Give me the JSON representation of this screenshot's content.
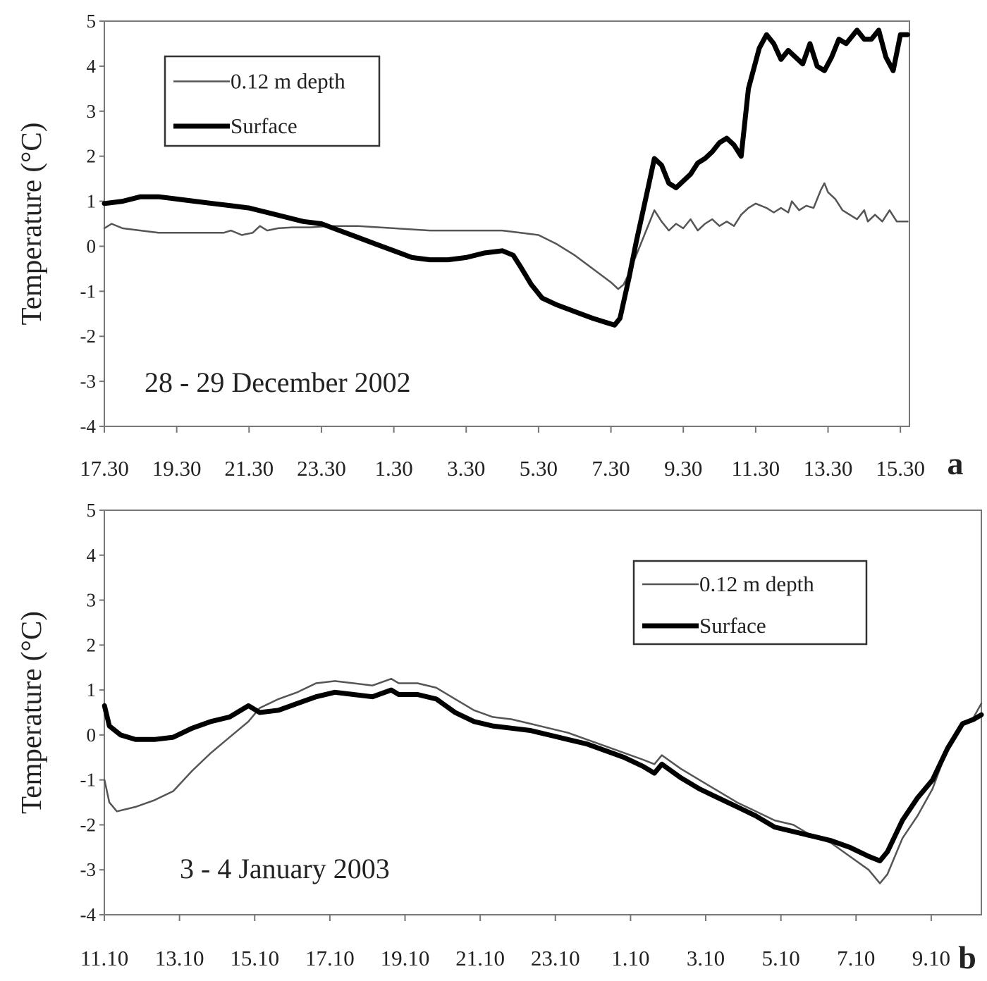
{
  "chart_data": [
    {
      "type": "line",
      "panel_label": "a",
      "annotation": "28 - 29 December 2002",
      "ylabel": "Temperature (°C)",
      "xlabel": "",
      "ylim": [
        -4,
        5
      ],
      "yticks": [
        5,
        4,
        3,
        2,
        1,
        0,
        -1,
        -2,
        -3,
        -4
      ],
      "xlim": [
        17.5,
        39.75
      ],
      "xtick_values": [
        17.5,
        19.5,
        21.5,
        23.5,
        25.5,
        27.5,
        29.5,
        31.5,
        33.5,
        35.5,
        37.5,
        39.5
      ],
      "xtick_labels": [
        "17.30",
        "19.30",
        "21.30",
        "23.30",
        "1.30",
        "3.30",
        "5.30",
        "7.30",
        "9.30",
        "11.30",
        "13.30",
        "15.30"
      ],
      "grid": false,
      "legend_position": "top-left",
      "series": [
        {
          "name": "0.12 m depth",
          "style": "thin",
          "color": "#555555",
          "points": [
            [
              17.5,
              0.4
            ],
            [
              17.7,
              0.5
            ],
            [
              18.0,
              0.4
            ],
            [
              18.5,
              0.35
            ],
            [
              19.0,
              0.3
            ],
            [
              20.0,
              0.3
            ],
            [
              20.8,
              0.3
            ],
            [
              21.0,
              0.35
            ],
            [
              21.3,
              0.25
            ],
            [
              21.6,
              0.3
            ],
            [
              21.8,
              0.45
            ],
            [
              22.0,
              0.35
            ],
            [
              22.3,
              0.4
            ],
            [
              22.7,
              0.42
            ],
            [
              23.2,
              0.42
            ],
            [
              23.7,
              0.45
            ],
            [
              24.5,
              0.45
            ],
            [
              25.5,
              0.4
            ],
            [
              26.5,
              0.35
            ],
            [
              27.5,
              0.35
            ],
            [
              28.5,
              0.35
            ],
            [
              29.0,
              0.3
            ],
            [
              29.5,
              0.25
            ],
            [
              30.0,
              0.05
            ],
            [
              30.5,
              -0.2
            ],
            [
              31.0,
              -0.5
            ],
            [
              31.5,
              -0.8
            ],
            [
              31.7,
              -0.95
            ],
            [
              31.85,
              -0.85
            ],
            [
              32.0,
              -0.6
            ],
            [
              32.3,
              0.0
            ],
            [
              32.6,
              0.6
            ],
            [
              32.7,
              0.8
            ],
            [
              32.9,
              0.55
            ],
            [
              33.1,
              0.35
            ],
            [
              33.3,
              0.5
            ],
            [
              33.5,
              0.4
            ],
            [
              33.7,
              0.6
            ],
            [
              33.9,
              0.35
            ],
            [
              34.1,
              0.5
            ],
            [
              34.3,
              0.6
            ],
            [
              34.5,
              0.45
            ],
            [
              34.7,
              0.55
            ],
            [
              34.9,
              0.45
            ],
            [
              35.1,
              0.7
            ],
            [
              35.3,
              0.85
            ],
            [
              35.5,
              0.95
            ],
            [
              35.8,
              0.85
            ],
            [
              36.0,
              0.75
            ],
            [
              36.2,
              0.85
            ],
            [
              36.4,
              0.75
            ],
            [
              36.5,
              1.0
            ],
            [
              36.7,
              0.8
            ],
            [
              36.9,
              0.9
            ],
            [
              37.1,
              0.85
            ],
            [
              37.3,
              1.25
            ],
            [
              37.4,
              1.4
            ],
            [
              37.5,
              1.2
            ],
            [
              37.7,
              1.05
            ],
            [
              37.9,
              0.8
            ],
            [
              38.1,
              0.7
            ],
            [
              38.3,
              0.6
            ],
            [
              38.5,
              0.8
            ],
            [
              38.6,
              0.55
            ],
            [
              38.8,
              0.7
            ],
            [
              39.0,
              0.55
            ],
            [
              39.2,
              0.8
            ],
            [
              39.4,
              0.55
            ],
            [
              39.7,
              0.55
            ]
          ]
        },
        {
          "name": "Surface",
          "style": "thick",
          "color": "#000000",
          "points": [
            [
              17.5,
              0.95
            ],
            [
              18.0,
              1.0
            ],
            [
              18.5,
              1.1
            ],
            [
              19.0,
              1.1
            ],
            [
              19.5,
              1.05
            ],
            [
              20.0,
              1.0
            ],
            [
              20.5,
              0.95
            ],
            [
              21.0,
              0.9
            ],
            [
              21.5,
              0.85
            ],
            [
              22.0,
              0.75
            ],
            [
              22.5,
              0.65
            ],
            [
              23.0,
              0.55
            ],
            [
              23.5,
              0.5
            ],
            [
              24.0,
              0.35
            ],
            [
              24.5,
              0.2
            ],
            [
              25.0,
              0.05
            ],
            [
              25.5,
              -0.1
            ],
            [
              26.0,
              -0.25
            ],
            [
              26.5,
              -0.3
            ],
            [
              27.0,
              -0.3
            ],
            [
              27.5,
              -0.25
            ],
            [
              28.0,
              -0.15
            ],
            [
              28.5,
              -0.1
            ],
            [
              28.8,
              -0.2
            ],
            [
              29.0,
              -0.45
            ],
            [
              29.3,
              -0.85
            ],
            [
              29.6,
              -1.15
            ],
            [
              30.0,
              -1.3
            ],
            [
              30.5,
              -1.45
            ],
            [
              31.0,
              -1.6
            ],
            [
              31.4,
              -1.7
            ],
            [
              31.6,
              -1.75
            ],
            [
              31.75,
              -1.6
            ],
            [
              32.0,
              -0.7
            ],
            [
              32.2,
              0.1
            ],
            [
              32.5,
              1.2
            ],
            [
              32.7,
              1.95
            ],
            [
              32.9,
              1.8
            ],
            [
              33.1,
              1.4
            ],
            [
              33.3,
              1.3
            ],
            [
              33.5,
              1.45
            ],
            [
              33.7,
              1.6
            ],
            [
              33.9,
              1.85
            ],
            [
              34.1,
              1.95
            ],
            [
              34.3,
              2.1
            ],
            [
              34.5,
              2.3
            ],
            [
              34.7,
              2.4
            ],
            [
              34.9,
              2.25
            ],
            [
              35.1,
              2.0
            ],
            [
              35.3,
              3.5
            ],
            [
              35.6,
              4.4
            ],
            [
              35.8,
              4.7
            ],
            [
              36.0,
              4.5
            ],
            [
              36.2,
              4.15
            ],
            [
              36.4,
              4.35
            ],
            [
              36.6,
              4.2
            ],
            [
              36.8,
              4.05
            ],
            [
              37.0,
              4.5
            ],
            [
              37.2,
              4.0
            ],
            [
              37.4,
              3.9
            ],
            [
              37.6,
              4.2
            ],
            [
              37.8,
              4.6
            ],
            [
              38.0,
              4.5
            ],
            [
              38.3,
              4.8
            ],
            [
              38.5,
              4.6
            ],
            [
              38.7,
              4.6
            ],
            [
              38.9,
              4.8
            ],
            [
              39.1,
              4.2
            ],
            [
              39.3,
              3.9
            ],
            [
              39.5,
              4.7
            ],
            [
              39.7,
              4.7
            ]
          ]
        }
      ]
    },
    {
      "type": "line",
      "panel_label": "b",
      "annotation": "3 - 4 January 2003",
      "ylabel": "Temperature (°C)",
      "xlabel": "",
      "ylim": [
        -4,
        5
      ],
      "yticks": [
        5,
        4,
        3,
        2,
        1,
        0,
        -1,
        -2,
        -3,
        -4
      ],
      "xlim": [
        11.1667,
        34.5
      ],
      "xtick_values": [
        11.1667,
        13.1667,
        15.1667,
        17.1667,
        19.1667,
        21.1667,
        23.1667,
        25.1667,
        27.1667,
        29.1667,
        31.1667,
        33.1667
      ],
      "xtick_labels": [
        "11.10",
        "13.10",
        "15.10",
        "17.10",
        "19.10",
        "21.10",
        "23.10",
        "1.10",
        "3.10",
        "5.10",
        "7.10",
        "9.10"
      ],
      "grid": false,
      "legend_position": "top-right",
      "series": [
        {
          "name": "0.12 m depth",
          "style": "thin",
          "color": "#555555",
          "points": [
            [
              11.17,
              -1.0
            ],
            [
              11.3,
              -1.5
            ],
            [
              11.5,
              -1.7
            ],
            [
              12.0,
              -1.6
            ],
            [
              12.5,
              -1.45
            ],
            [
              13.0,
              -1.25
            ],
            [
              13.5,
              -0.8
            ],
            [
              14.0,
              -0.4
            ],
            [
              14.5,
              -0.05
            ],
            [
              15.0,
              0.3
            ],
            [
              15.3,
              0.6
            ],
            [
              15.8,
              0.8
            ],
            [
              16.3,
              0.95
            ],
            [
              16.8,
              1.15
            ],
            [
              17.3,
              1.2
            ],
            [
              17.8,
              1.15
            ],
            [
              18.3,
              1.1
            ],
            [
              18.8,
              1.25
            ],
            [
              19.0,
              1.15
            ],
            [
              19.5,
              1.15
            ],
            [
              20.0,
              1.05
            ],
            [
              20.5,
              0.8
            ],
            [
              21.0,
              0.55
            ],
            [
              21.5,
              0.4
            ],
            [
              22.0,
              0.35
            ],
            [
              22.5,
              0.25
            ],
            [
              23.0,
              0.15
            ],
            [
              23.5,
              0.05
            ],
            [
              24.0,
              -0.1
            ],
            [
              24.5,
              -0.25
            ],
            [
              25.0,
              -0.4
            ],
            [
              25.5,
              -0.55
            ],
            [
              25.8,
              -0.65
            ],
            [
              26.0,
              -0.45
            ],
            [
              26.5,
              -0.75
            ],
            [
              27.0,
              -1.0
            ],
            [
              27.5,
              -1.25
            ],
            [
              28.0,
              -1.5
            ],
            [
              28.5,
              -1.7
            ],
            [
              29.0,
              -1.9
            ],
            [
              29.5,
              -2.0
            ],
            [
              30.0,
              -2.25
            ],
            [
              30.5,
              -2.4
            ],
            [
              31.0,
              -2.7
            ],
            [
              31.5,
              -3.0
            ],
            [
              31.8,
              -3.3
            ],
            [
              32.0,
              -3.1
            ],
            [
              32.4,
              -2.3
            ],
            [
              32.8,
              -1.8
            ],
            [
              33.2,
              -1.2
            ],
            [
              33.6,
              -0.3
            ],
            [
              34.0,
              0.2
            ],
            [
              34.3,
              0.4
            ],
            [
              34.5,
              0.7
            ]
          ]
        },
        {
          "name": "Surface",
          "style": "thick",
          "color": "#000000",
          "points": [
            [
              11.17,
              0.65
            ],
            [
              11.3,
              0.2
            ],
            [
              11.6,
              0.0
            ],
            [
              12.0,
              -0.1
            ],
            [
              12.5,
              -0.1
            ],
            [
              13.0,
              -0.05
            ],
            [
              13.5,
              0.15
            ],
            [
              14.0,
              0.3
            ],
            [
              14.5,
              0.4
            ],
            [
              15.0,
              0.65
            ],
            [
              15.3,
              0.5
            ],
            [
              15.8,
              0.55
            ],
            [
              16.3,
              0.7
            ],
            [
              16.8,
              0.85
            ],
            [
              17.3,
              0.95
            ],
            [
              17.8,
              0.9
            ],
            [
              18.3,
              0.85
            ],
            [
              18.8,
              1.0
            ],
            [
              19.0,
              0.9
            ],
            [
              19.5,
              0.9
            ],
            [
              20.0,
              0.8
            ],
            [
              20.5,
              0.5
            ],
            [
              21.0,
              0.3
            ],
            [
              21.5,
              0.2
            ],
            [
              22.0,
              0.15
            ],
            [
              22.5,
              0.1
            ],
            [
              23.0,
              0.0
            ],
            [
              23.5,
              -0.1
            ],
            [
              24.0,
              -0.2
            ],
            [
              24.5,
              -0.35
            ],
            [
              25.0,
              -0.5
            ],
            [
              25.5,
              -0.7
            ],
            [
              25.8,
              -0.85
            ],
            [
              26.0,
              -0.65
            ],
            [
              26.5,
              -0.95
            ],
            [
              27.0,
              -1.2
            ],
            [
              27.5,
              -1.4
            ],
            [
              28.0,
              -1.6
            ],
            [
              28.5,
              -1.8
            ],
            [
              29.0,
              -2.05
            ],
            [
              29.5,
              -2.15
            ],
            [
              30.0,
              -2.25
            ],
            [
              30.5,
              -2.35
            ],
            [
              31.0,
              -2.5
            ],
            [
              31.5,
              -2.7
            ],
            [
              31.8,
              -2.8
            ],
            [
              32.0,
              -2.6
            ],
            [
              32.4,
              -1.9
            ],
            [
              32.8,
              -1.4
            ],
            [
              33.2,
              -1.0
            ],
            [
              33.6,
              -0.3
            ],
            [
              34.0,
              0.25
            ],
            [
              34.3,
              0.35
            ],
            [
              34.5,
              0.45
            ]
          ]
        }
      ]
    }
  ]
}
